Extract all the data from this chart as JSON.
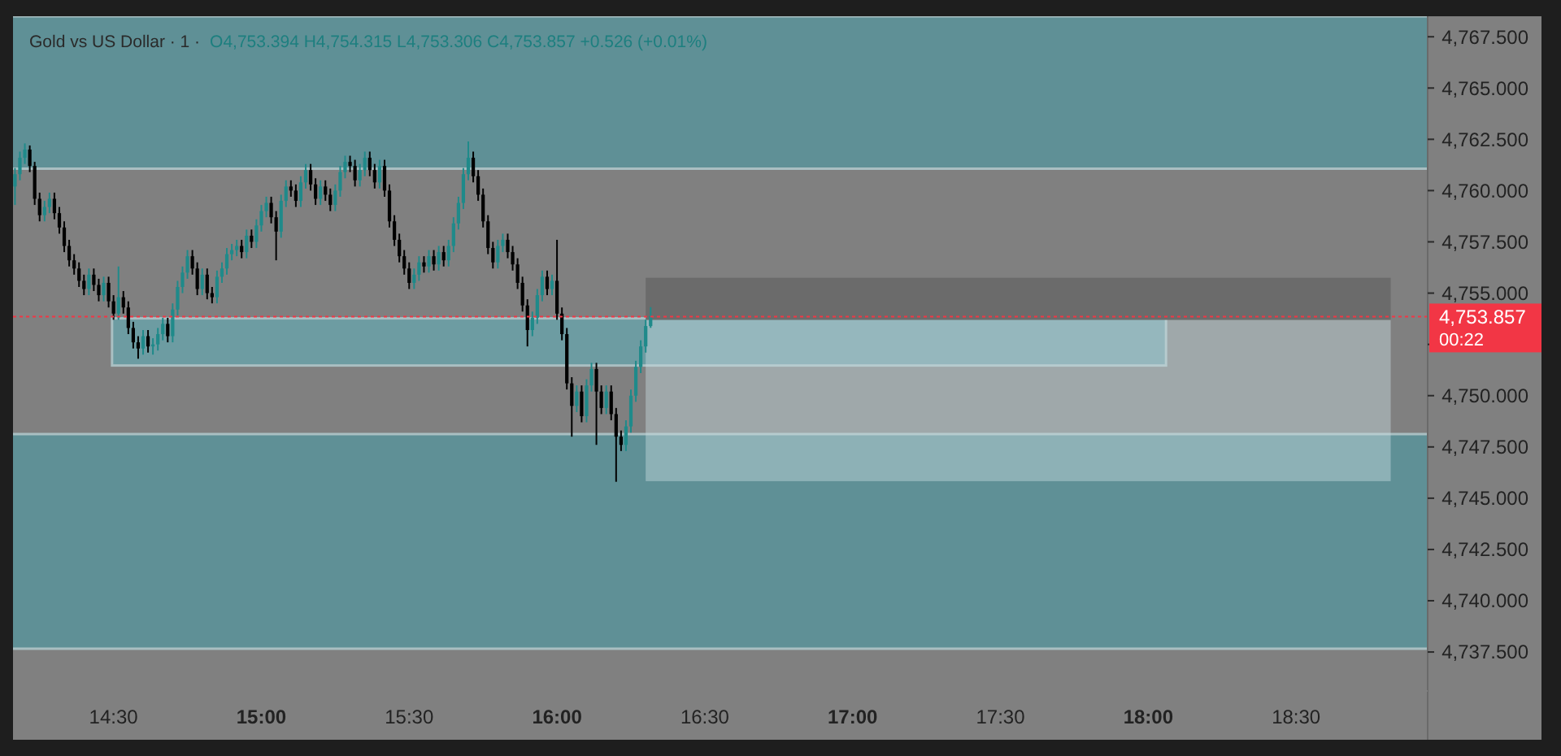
{
  "chart_data": {
    "type": "candlestick",
    "title": "Gold vs US Dollar · 1 ·",
    "subtitle": "O4,753.394  H4,754.315  L4,753.306  C4,753.857  +0.526 (+0.01%)",
    "x": [
      14.1667,
      14.1833,
      14.2,
      14.2167,
      14.2333,
      14.25,
      14.2667,
      14.2833,
      14.3,
      14.3167,
      14.3333,
      14.35,
      14.3667,
      14.3833,
      14.4,
      14.4167,
      14.4333,
      14.45,
      14.4667,
      14.4833,
      14.5,
      14.5167,
      14.5333,
      14.55,
      14.5667,
      14.5833,
      14.6,
      14.6167,
      14.6333,
      14.65,
      14.6667,
      14.6833,
      14.7,
      14.7167,
      14.7333,
      14.75,
      14.7667,
      14.7833,
      14.8,
      14.8167,
      14.8333,
      14.85,
      14.8667,
      14.8833,
      14.9,
      14.9167,
      14.9333,
      14.95,
      14.9667,
      14.9833,
      15.0,
      15.0167,
      15.0333,
      15.05,
      15.0667,
      15.0833,
      15.1,
      15.1167,
      15.1333,
      15.15,
      15.1667,
      15.1833,
      15.2,
      15.2167,
      15.2333,
      15.25,
      15.2667,
      15.2833,
      15.3,
      15.3167,
      15.3333,
      15.35,
      15.3667,
      15.3833,
      15.4,
      15.4167,
      15.4333,
      15.45,
      15.4667,
      15.4833,
      15.5,
      15.5167,
      15.5333,
      15.55,
      15.5667,
      15.5833,
      15.6,
      15.6167,
      15.6333,
      15.65,
      15.6667,
      15.6833,
      15.7,
      15.7167,
      15.7333,
      15.75,
      15.7667,
      15.7833,
      15.8,
      15.8167,
      15.8333,
      15.85,
      15.8667,
      15.8833,
      15.9,
      15.9167,
      15.9333,
      15.95,
      15.9667,
      15.9833,
      16.0,
      16.0167,
      16.0333,
      16.05,
      16.0667,
      16.0833,
      16.1,
      16.1167,
      16.1333,
      16.15,
      16.1667,
      16.1833,
      16.2,
      16.2167,
      16.2333,
      16.25,
      16.2667,
      16.2833,
      16.3,
      16.3167
    ],
    "ohlc": [
      [
        4760.2,
        4761.1,
        4759.3,
        4760.8
      ],
      [
        4760.8,
        4761.9,
        4760.5,
        4761.6
      ],
      [
        4761.6,
        4762.3,
        4761.3,
        4762.0
      ],
      [
        4762.0,
        4762.2,
        4760.9,
        4761.2
      ],
      [
        4761.2,
        4761.4,
        4759.3,
        4759.6
      ],
      [
        4759.6,
        4759.9,
        4758.5,
        4758.8
      ],
      [
        4758.8,
        4759.5,
        4758.5,
        4759.2
      ],
      [
        4759.2,
        4759.9,
        4758.9,
        4759.6
      ],
      [
        4759.6,
        4759.9,
        4758.6,
        4758.9
      ],
      [
        4758.9,
        4759.2,
        4757.9,
        4758.2
      ],
      [
        4758.2,
        4758.5,
        4757.0,
        4757.3
      ],
      [
        4757.3,
        4757.6,
        4756.3,
        4756.6
      ],
      [
        4756.6,
        4756.9,
        4755.9,
        4756.2
      ],
      [
        4756.2,
        4756.5,
        4755.3,
        4755.6
      ],
      [
        4755.6,
        4755.9,
        4754.9,
        4755.2
      ],
      [
        4755.2,
        4756.2,
        4754.9,
        4755.9
      ],
      [
        4755.9,
        4756.2,
        4755.1,
        4755.4
      ],
      [
        4755.4,
        4755.7,
        4754.6,
        4754.9
      ],
      [
        4754.9,
        4755.8,
        4754.6,
        4755.5
      ],
      [
        4755.5,
        4755.8,
        4754.3,
        4754.6
      ],
      [
        4754.6,
        4754.9,
        4753.7,
        4754.0
      ],
      [
        4754.0,
        4756.3,
        4753.7,
        4754.8
      ],
      [
        4754.8,
        4755.1,
        4754.0,
        4754.3
      ],
      [
        4754.3,
        4754.6,
        4753.0,
        4753.3
      ],
      [
        4753.3,
        4753.6,
        4752.3,
        4752.6
      ],
      [
        4752.6,
        4752.9,
        4751.8,
        4752.3
      ],
      [
        4752.3,
        4753.2,
        4752.0,
        4752.9
      ],
      [
        4752.9,
        4753.2,
        4752.1,
        4752.4
      ],
      [
        4752.4,
        4752.8,
        4752.0,
        4752.5
      ],
      [
        4752.5,
        4753.3,
        4752.2,
        4753.0
      ],
      [
        4753.0,
        4753.8,
        4752.7,
        4753.5
      ],
      [
        4753.5,
        4753.8,
        4752.6,
        4752.9
      ],
      [
        4752.9,
        4754.5,
        4752.6,
        4754.2
      ],
      [
        4754.2,
        4755.6,
        4753.9,
        4755.3
      ],
      [
        4755.3,
        4756.3,
        4755.0,
        4756.0
      ],
      [
        4756.0,
        4757.1,
        4755.7,
        4756.8
      ],
      [
        4756.8,
        4757.1,
        4755.9,
        4756.2
      ],
      [
        4756.2,
        4756.5,
        4754.9,
        4755.2
      ],
      [
        4755.2,
        4756.2,
        4754.9,
        4755.9
      ],
      [
        4755.9,
        4756.2,
        4754.7,
        4755.0
      ],
      [
        4755.0,
        4755.3,
        4754.5,
        4754.8
      ],
      [
        4754.8,
        4756.1,
        4754.5,
        4755.8
      ],
      [
        4755.8,
        4756.5,
        4755.5,
        4756.2
      ],
      [
        4756.2,
        4757.2,
        4755.9,
        4756.9
      ],
      [
        4756.9,
        4757.4,
        4756.6,
        4757.1
      ],
      [
        4757.1,
        4757.6,
        4756.8,
        4757.3
      ],
      [
        4757.3,
        4757.6,
        4756.7,
        4757.0
      ],
      [
        4757.0,
        4758.1,
        4756.7,
        4757.8
      ],
      [
        4757.8,
        4758.1,
        4757.2,
        4757.5
      ],
      [
        4757.5,
        4758.6,
        4757.2,
        4758.3
      ],
      [
        4758.3,
        4759.3,
        4758.0,
        4759.0
      ],
      [
        4759.0,
        4759.7,
        4758.7,
        4759.4
      ],
      [
        4759.4,
        4759.7,
        4758.4,
        4758.7
      ],
      [
        4758.7,
        4759.0,
        4756.6,
        4758.0
      ],
      [
        4758.0,
        4759.8,
        4757.7,
        4759.5
      ],
      [
        4759.5,
        4760.5,
        4759.2,
        4760.2
      ],
      [
        4760.2,
        4760.5,
        4759.7,
        4760.0
      ],
      [
        4760.0,
        4760.3,
        4759.2,
        4759.5
      ],
      [
        4759.5,
        4760.7,
        4759.2,
        4760.4
      ],
      [
        4760.4,
        4761.3,
        4760.1,
        4761.0
      ],
      [
        4761.0,
        4761.3,
        4760.0,
        4760.3
      ],
      [
        4760.3,
        4760.6,
        4759.3,
        4759.6
      ],
      [
        4759.6,
        4760.5,
        4759.3,
        4760.2
      ],
      [
        4760.2,
        4760.5,
        4759.5,
        4759.8
      ],
      [
        4759.8,
        4760.1,
        4759.0,
        4759.3
      ],
      [
        4759.3,
        4760.3,
        4759.0,
        4760.0
      ],
      [
        4760.0,
        4761.2,
        4759.7,
        4760.9
      ],
      [
        4760.9,
        4761.7,
        4760.6,
        4761.4
      ],
      [
        4761.4,
        4761.7,
        4760.9,
        4761.2
      ],
      [
        4761.2,
        4761.5,
        4760.2,
        4760.5
      ],
      [
        4760.5,
        4761.3,
        4760.2,
        4761.0
      ],
      [
        4761.0,
        4761.9,
        4760.7,
        4761.6
      ],
      [
        4761.6,
        4761.9,
        4760.7,
        4761.0
      ],
      [
        4761.0,
        4761.3,
        4760.1,
        4760.4
      ],
      [
        4760.4,
        4761.5,
        4760.1,
        4761.2
      ],
      [
        4761.2,
        4761.5,
        4759.7,
        4760.0
      ],
      [
        4760.0,
        4760.3,
        4758.2,
        4758.5
      ],
      [
        4758.5,
        4758.8,
        4757.3,
        4757.6
      ],
      [
        4757.6,
        4757.9,
        4756.5,
        4756.8
      ],
      [
        4756.8,
        4757.1,
        4755.9,
        4756.2
      ],
      [
        4756.2,
        4756.5,
        4755.2,
        4755.5
      ],
      [
        4755.5,
        4756.2,
        4755.2,
        4755.9
      ],
      [
        4755.9,
        4756.8,
        4755.6,
        4756.5
      ],
      [
        4756.5,
        4756.8,
        4756.0,
        4756.3
      ],
      [
        4756.3,
        4757.1,
        4756.0,
        4756.8
      ],
      [
        4756.8,
        4757.1,
        4756.1,
        4756.4
      ],
      [
        4756.4,
        4757.3,
        4756.1,
        4757.0
      ],
      [
        4757.0,
        4757.3,
        4756.3,
        4756.6
      ],
      [
        4756.6,
        4757.6,
        4756.3,
        4757.3
      ],
      [
        4757.3,
        4758.7,
        4757.0,
        4758.4
      ],
      [
        4758.4,
        4759.7,
        4758.1,
        4759.4
      ],
      [
        4759.4,
        4761.1,
        4759.1,
        4760.8
      ],
      [
        4760.8,
        4762.4,
        4760.5,
        4761.6
      ],
      [
        4761.6,
        4761.9,
        4760.4,
        4760.7
      ],
      [
        4760.7,
        4761.0,
        4759.5,
        4759.8
      ],
      [
        4759.8,
        4760.1,
        4758.2,
        4758.5
      ],
      [
        4758.5,
        4758.8,
        4756.9,
        4757.2
      ],
      [
        4757.2,
        4757.5,
        4756.2,
        4756.5
      ],
      [
        4756.5,
        4757.6,
        4756.2,
        4757.3
      ],
      [
        4757.3,
        4757.9,
        4757.0,
        4757.6
      ],
      [
        4757.6,
        4757.9,
        4756.7,
        4757.0
      ],
      [
        4757.0,
        4757.3,
        4756.1,
        4756.4
      ],
      [
        4756.4,
        4756.7,
        4755.2,
        4755.5
      ],
      [
        4755.5,
        4755.8,
        4754.1,
        4754.4
      ],
      [
        4754.4,
        4754.7,
        4752.4,
        4753.2
      ],
      [
        4753.2,
        4754.1,
        4752.9,
        4753.8
      ],
      [
        4753.8,
        4755.2,
        4753.5,
        4754.9
      ],
      [
        4754.9,
        4756.1,
        4754.6,
        4755.8
      ],
      [
        4755.8,
        4756.1,
        4754.9,
        4755.2
      ],
      [
        4755.2,
        4755.9,
        4754.9,
        4755.6
      ],
      [
        4755.6,
        4757.6,
        4753.7,
        4754.0
      ],
      [
        4754.0,
        4754.3,
        4752.7,
        4753.0
      ],
      [
        4753.0,
        4753.3,
        4750.3,
        4750.6
      ],
      [
        4750.6,
        4750.9,
        4748.0,
        4749.5
      ],
      [
        4749.5,
        4750.5,
        4749.2,
        4750.2
      ],
      [
        4750.2,
        4750.5,
        4748.7,
        4749.0
      ],
      [
        4749.0,
        4750.8,
        4748.7,
        4750.5
      ],
      [
        4750.5,
        4751.6,
        4750.2,
        4751.3
      ],
      [
        4751.3,
        4751.6,
        4747.6,
        4750.2
      ],
      [
        4750.2,
        4750.5,
        4749.1,
        4749.4
      ],
      [
        4749.4,
        4750.5,
        4749.1,
        4750.2
      ],
      [
        4750.2,
        4750.5,
        4748.8,
        4749.1
      ],
      [
        4749.1,
        4749.4,
        4745.8,
        4748.0
      ],
      [
        4748.0,
        4748.3,
        4747.3,
        4747.6
      ],
      [
        4747.6,
        4748.8,
        4747.3,
        4748.5
      ],
      [
        4748.5,
        4750.3,
        4748.2,
        4750.0
      ],
      [
        4750.0,
        4751.7,
        4749.7,
        4751.4
      ],
      [
        4751.4,
        4752.7,
        4751.1,
        4752.4
      ],
      [
        4752.4,
        4753.7,
        4752.1,
        4753.394
      ],
      [
        4753.394,
        4754.315,
        4753.306,
        4753.857
      ]
    ],
    "xlim": [
      14.16,
      18.945
    ],
    "ylim": [
      4735.6,
      4768.5
    ],
    "xticks": [
      {
        "value": 14.5,
        "label": "14:30"
      },
      {
        "value": 15,
        "label": "15:00"
      },
      {
        "value": 15.5,
        "label": "15:30"
      },
      {
        "value": 16,
        "label": "16:00"
      },
      {
        "value": 16.5,
        "label": "16:30"
      },
      {
        "value": 17,
        "label": "17:00"
      },
      {
        "value": 17.5,
        "label": "17:30"
      },
      {
        "value": 18,
        "label": "18:00"
      },
      {
        "value": 18.5,
        "label": "18:30"
      }
    ],
    "yticks": [
      {
        "value": 4737.5,
        "label": "4,737.500"
      },
      {
        "value": 4740,
        "label": "4,740.000"
      },
      {
        "value": 4742.5,
        "label": "4,742.500"
      },
      {
        "value": 4745,
        "label": "4,745.000"
      },
      {
        "value": 4747.5,
        "label": "4,747.500"
      },
      {
        "value": 4750,
        "label": "4,750.000"
      },
      {
        "value": 4752.5,
        "label": null
      },
      {
        "value": 4755,
        "label": "4,755.000"
      },
      {
        "value": 4757.5,
        "label": "4,757.500"
      },
      {
        "value": 4760,
        "label": "4,760.000"
      },
      {
        "value": 4762.5,
        "label": "4,762.500"
      },
      {
        "value": 4765,
        "label": "4,765.000"
      },
      {
        "value": 4767.5,
        "label": "4,767.500"
      }
    ],
    "bands": [
      {
        "axis": "y",
        "from": 4761.07,
        "to": 4768.5,
        "color": "#5f9096"
      },
      {
        "axis": "y",
        "from": 4737.66,
        "to": 4748.13,
        "color": "#5f9096"
      }
    ],
    "ref_lines": [
      {
        "axis": "y",
        "value": 4753.857,
        "label": "4,753.857",
        "color": "#f23645",
        "line_style": "dotted"
      }
    ],
    "annotations": [
      "00:22"
    ]
  }
}
